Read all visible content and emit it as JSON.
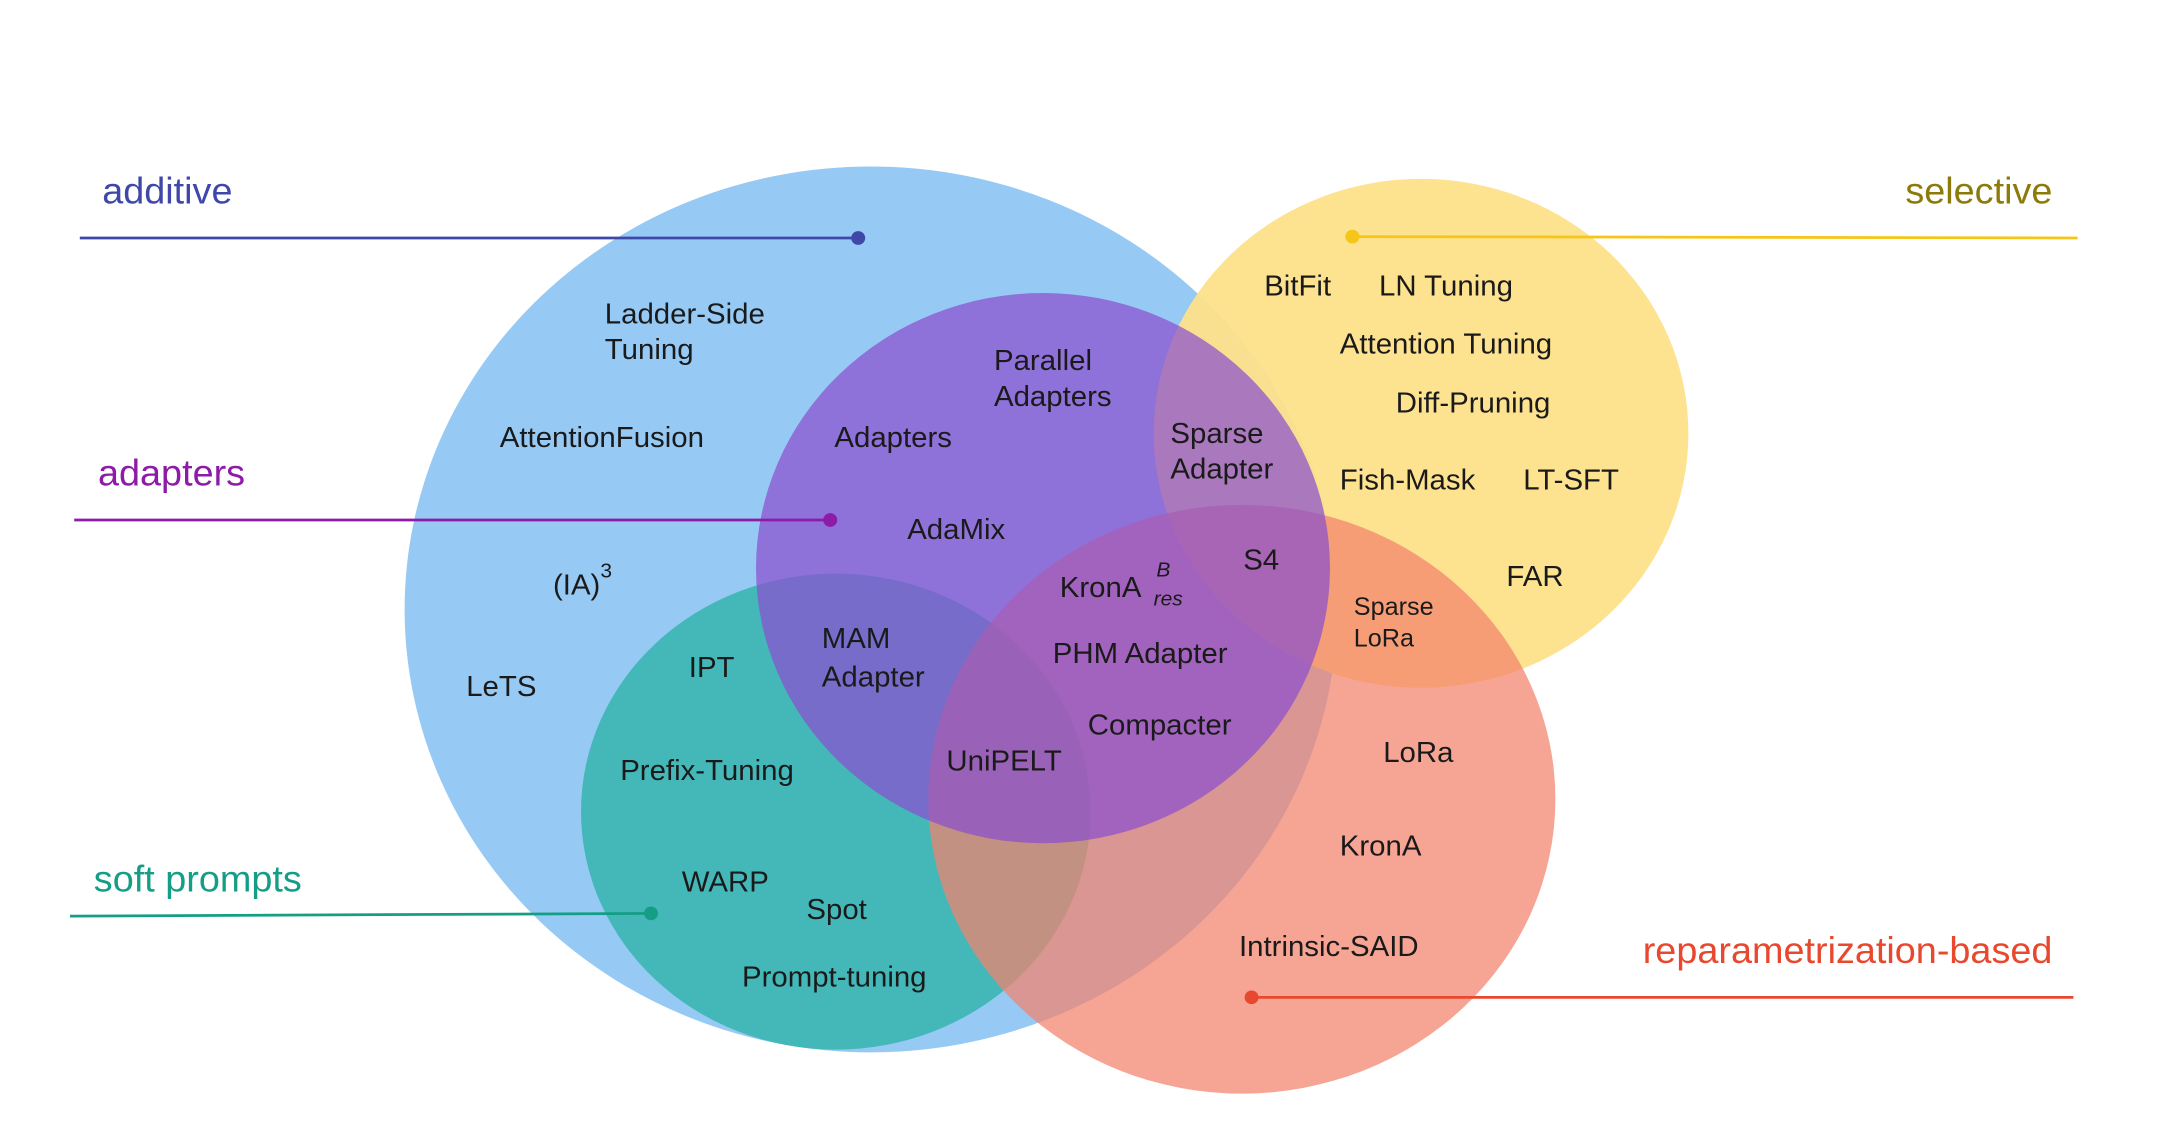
{
  "categories": {
    "additive": {
      "label": "additive",
      "color": "#3F48A8",
      "fill": "#96CAF5"
    },
    "adapters": {
      "label": "adapters",
      "color": "#8E1AA8",
      "fill": "#8A4FCF"
    },
    "soft_prompts": {
      "label": "soft prompts",
      "color": "#159E86",
      "fill": "#2FB3AA"
    },
    "selective": {
      "label": "selective",
      "color": "#8C7A0A",
      "line": "#F5C518",
      "fill": "#FDE08A"
    },
    "reparametrization": {
      "label": "reparametrization-based",
      "color": "#E8482E",
      "fill": "#F2826C"
    }
  },
  "methods": {
    "ladder_side_1": "Ladder-Side",
    "ladder_side_2": "Tuning",
    "attention_fusion": "AttentionFusion",
    "ia3": "(IA)",
    "ia3_sup": "3",
    "lets": "LeTS",
    "parallel_1": "Parallel",
    "parallel_2": "Adapters",
    "adapters": "Adapters",
    "adamix": "AdaMix",
    "sparse_adapter_1": "Sparse",
    "sparse_adapter_2": "Adapter",
    "s4": "S4",
    "krona_res": "KronA",
    "krona_res_sup": "B",
    "krona_res_sub": "res",
    "phm_adapter": "PHM Adapter",
    "compacter": "Compacter",
    "mam_1": "MAM",
    "mam_2": "Adapter",
    "unipelt": "UniPELT",
    "ipt": "IPT",
    "prefix_tuning": "Prefix-Tuning",
    "warp": "WARP",
    "spot": "Spot",
    "prompt_tuning": "Prompt-tuning",
    "bitfit": "BitFit",
    "ln_tuning": "LN Tuning",
    "attention_tuning": "Attention Tuning",
    "diff_pruning": "Diff-Pruning",
    "fish_mask": "Fish-Mask",
    "lt_sft": "LT-SFT",
    "far": "FAR",
    "sparse_lora_1": "Sparse",
    "sparse_lora_2": "LoRa",
    "lora": "LoRa",
    "krona": "KronA",
    "intrinsic_said": "Intrinsic-SAID"
  }
}
